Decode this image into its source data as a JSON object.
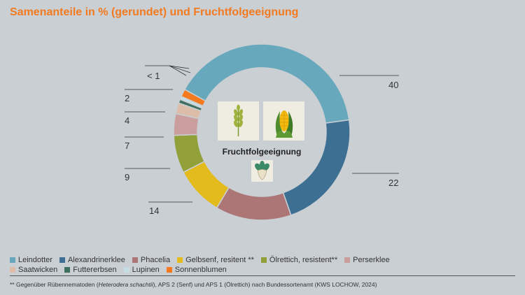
{
  "title": "Samenanteile in % (gerundet) und Fruchtfolgeeignung",
  "center_label": "Fruchtfolgeeignung",
  "icons": [
    "wheat-icon",
    "corn-icon",
    "beet-icon"
  ],
  "chart_data": {
    "type": "pie",
    "variant": "donut",
    "title": "Samenanteile in % (gerundet) und Fruchtfolgeeignung",
    "slices": [
      {
        "name": "Leindotter",
        "value": 40,
        "label": "40",
        "color": "#67a8bd"
      },
      {
        "name": "Alexandrinerklee",
        "value": 22,
        "label": "22",
        "color": "#3d6f93"
      },
      {
        "name": "Phacelia",
        "value": 14,
        "label": "14",
        "color": "#ad7676"
      },
      {
        "name": "Gelbsenf, resitent **",
        "value": 9,
        "label": "9",
        "color": "#e3bb1d"
      },
      {
        "name": "Ölrettich, resistent**",
        "value": 7,
        "label": "7",
        "color": "#92a03a"
      },
      {
        "name": "Perserklee",
        "value": 4,
        "label": "4",
        "color": "#c99e9c"
      },
      {
        "name": "Saatwicken",
        "value": 2,
        "label": "2",
        "color": "#dcbdaa"
      },
      {
        "name": "Futtererbsen",
        "value": 0.7,
        "label": "< 1",
        "color": "#3f6f5e"
      },
      {
        "name": "Lupinen",
        "value": 0.6,
        "label": "",
        "color": "#c6dde4"
      },
      {
        "name": "Sonnenblumen",
        "value": 1.4,
        "label": "",
        "color": "#f47a20"
      }
    ],
    "legend_placement": "bottom"
  },
  "legend_rows": [
    [
      0,
      1,
      2,
      3,
      4,
      5
    ],
    [
      6,
      7,
      8,
      9
    ]
  ],
  "footnote": {
    "prefix": "** Gegenüber Rübennematoden (",
    "italic": "Heterodera schachtii",
    "suffix": "), APS 2 (Senf) und APS 1 (Ölrettich) nach Bundessortenamt (KWS LOCHOW, 2024)"
  }
}
